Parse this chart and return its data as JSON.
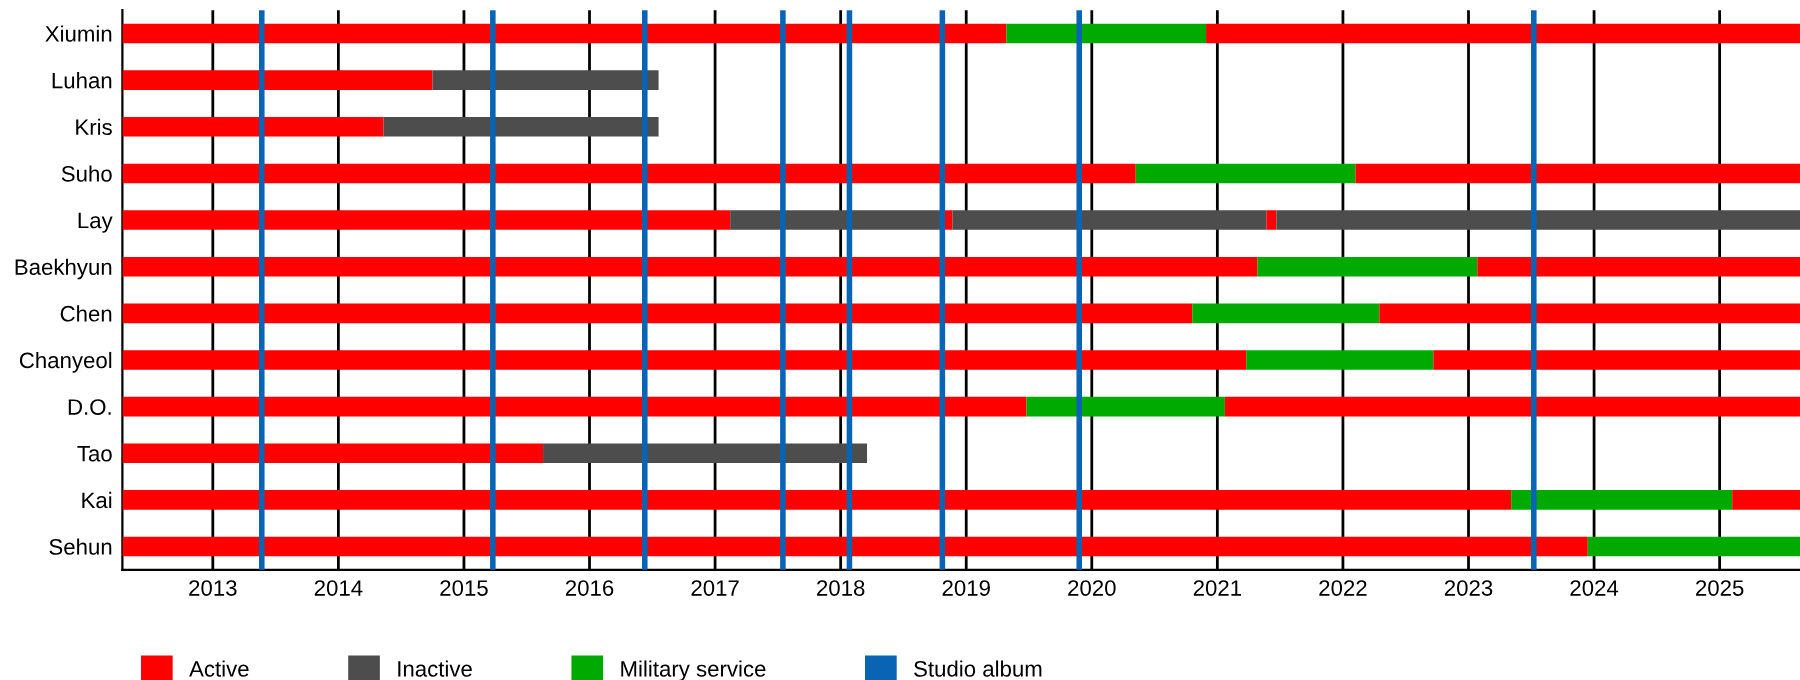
{
  "chart_data": {
    "type": "bar",
    "orientation": "horizontal",
    "categories": [
      "Xiumin",
      "Luhan",
      "Kris",
      "Suho",
      "Lay",
      "Baekhyun",
      "Chen",
      "Chanyeol",
      "D.O.",
      "Tao",
      "Kai",
      "Sehun"
    ],
    "series": [
      {
        "name": "Active",
        "color": "#ff0000",
        "base": [
          2012.28,
          2012.28,
          2012.28,
          2012.28,
          2012.28,
          2012.28,
          2012.28,
          2012.28,
          2012.28,
          2012.28,
          2012.28,
          2012.28
        ],
        "values": [
          7.04,
          2.47,
          2.08,
          8.07,
          4.84,
          9.04,
          8.52,
          8.95,
          7.2,
          3.35,
          11.06,
          11.67
        ]
      },
      {
        "name": "Inactive",
        "color": "#4d4d4d",
        "base": [
          null,
          2014.75,
          2014.36,
          null,
          2017.12,
          null,
          null,
          null,
          null,
          2015.63,
          null,
          null
        ],
        "values": [
          null,
          1.8,
          2.19,
          null,
          1.69,
          null,
          null,
          null,
          null,
          2.58,
          null,
          null
        ]
      },
      {
        "name": "Military service",
        "color": "#00aa00",
        "base": [
          2019.32,
          null,
          null,
          2020.35,
          null,
          2021.32,
          2020.8,
          2021.23,
          2019.48,
          null,
          2023.34,
          2023.95
        ],
        "values": [
          1.59,
          null,
          null,
          1.75,
          null,
          1.75,
          1.49,
          1.49,
          1.58,
          null,
          1.76,
          1.69
        ]
      },
      {
        "color": "#ff0000",
        "base": [
          2020.91,
          null,
          null,
          2022.1,
          2018.81,
          2023.07,
          2022.29,
          2022.72,
          2021.06,
          null,
          2025.1,
          null
        ],
        "values": [
          4.73,
          null,
          null,
          3.54,
          0.08,
          2.57,
          3.35,
          2.92,
          4.58,
          null,
          0.54,
          null
        ]
      },
      {
        "color": "#4d4d4d",
        "base": [
          null,
          null,
          null,
          null,
          2018.89,
          null,
          null,
          null,
          null,
          null,
          null,
          null
        ],
        "values": [
          null,
          null,
          null,
          null,
          2.5,
          null,
          null,
          null,
          null,
          null,
          null,
          null
        ]
      },
      {
        "color": "#ff0000",
        "base": [
          null,
          null,
          null,
          null,
          2021.39,
          null,
          null,
          null,
          null,
          null,
          null,
          null
        ],
        "values": [
          null,
          null,
          null,
          null,
          0.08,
          null,
          null,
          null,
          null,
          null,
          null,
          null
        ]
      },
      {
        "color": "#4d4d4d",
        "base": [
          null,
          null,
          null,
          null,
          2021.47,
          null,
          null,
          null,
          null,
          null,
          null,
          null
        ],
        "values": [
          null,
          null,
          null,
          null,
          4.17,
          null,
          null,
          null,
          null,
          null,
          null,
          null
        ]
      }
    ],
    "ref_lines": [
      {
        "axis": "x",
        "value": 2013.39,
        "label": "Studio album",
        "color": "#0a64b4"
      },
      {
        "axis": "x",
        "value": 2015.23,
        "color": "#0a64b4"
      },
      {
        "axis": "x",
        "value": 2016.44,
        "color": "#0a64b4"
      },
      {
        "axis": "x",
        "value": 2017.54,
        "color": "#0a64b4"
      },
      {
        "axis": "x",
        "value": 2018.07,
        "color": "#0a64b4"
      },
      {
        "axis": "x",
        "value": 2018.81,
        "color": "#0a64b4"
      },
      {
        "axis": "x",
        "value": 2019.9,
        "color": "#0a64b4"
      },
      {
        "axis": "x",
        "value": 2023.52,
        "color": "#0a64b4"
      }
    ],
    "xlim": [
      2012.28,
      2025.64
    ],
    "xticks": [
      2013,
      2014,
      2015,
      2016,
      2017,
      2018,
      2019,
      2020,
      2021,
      2022,
      2023,
      2024,
      2025
    ],
    "grid": "x",
    "legend": "bottom"
  }
}
